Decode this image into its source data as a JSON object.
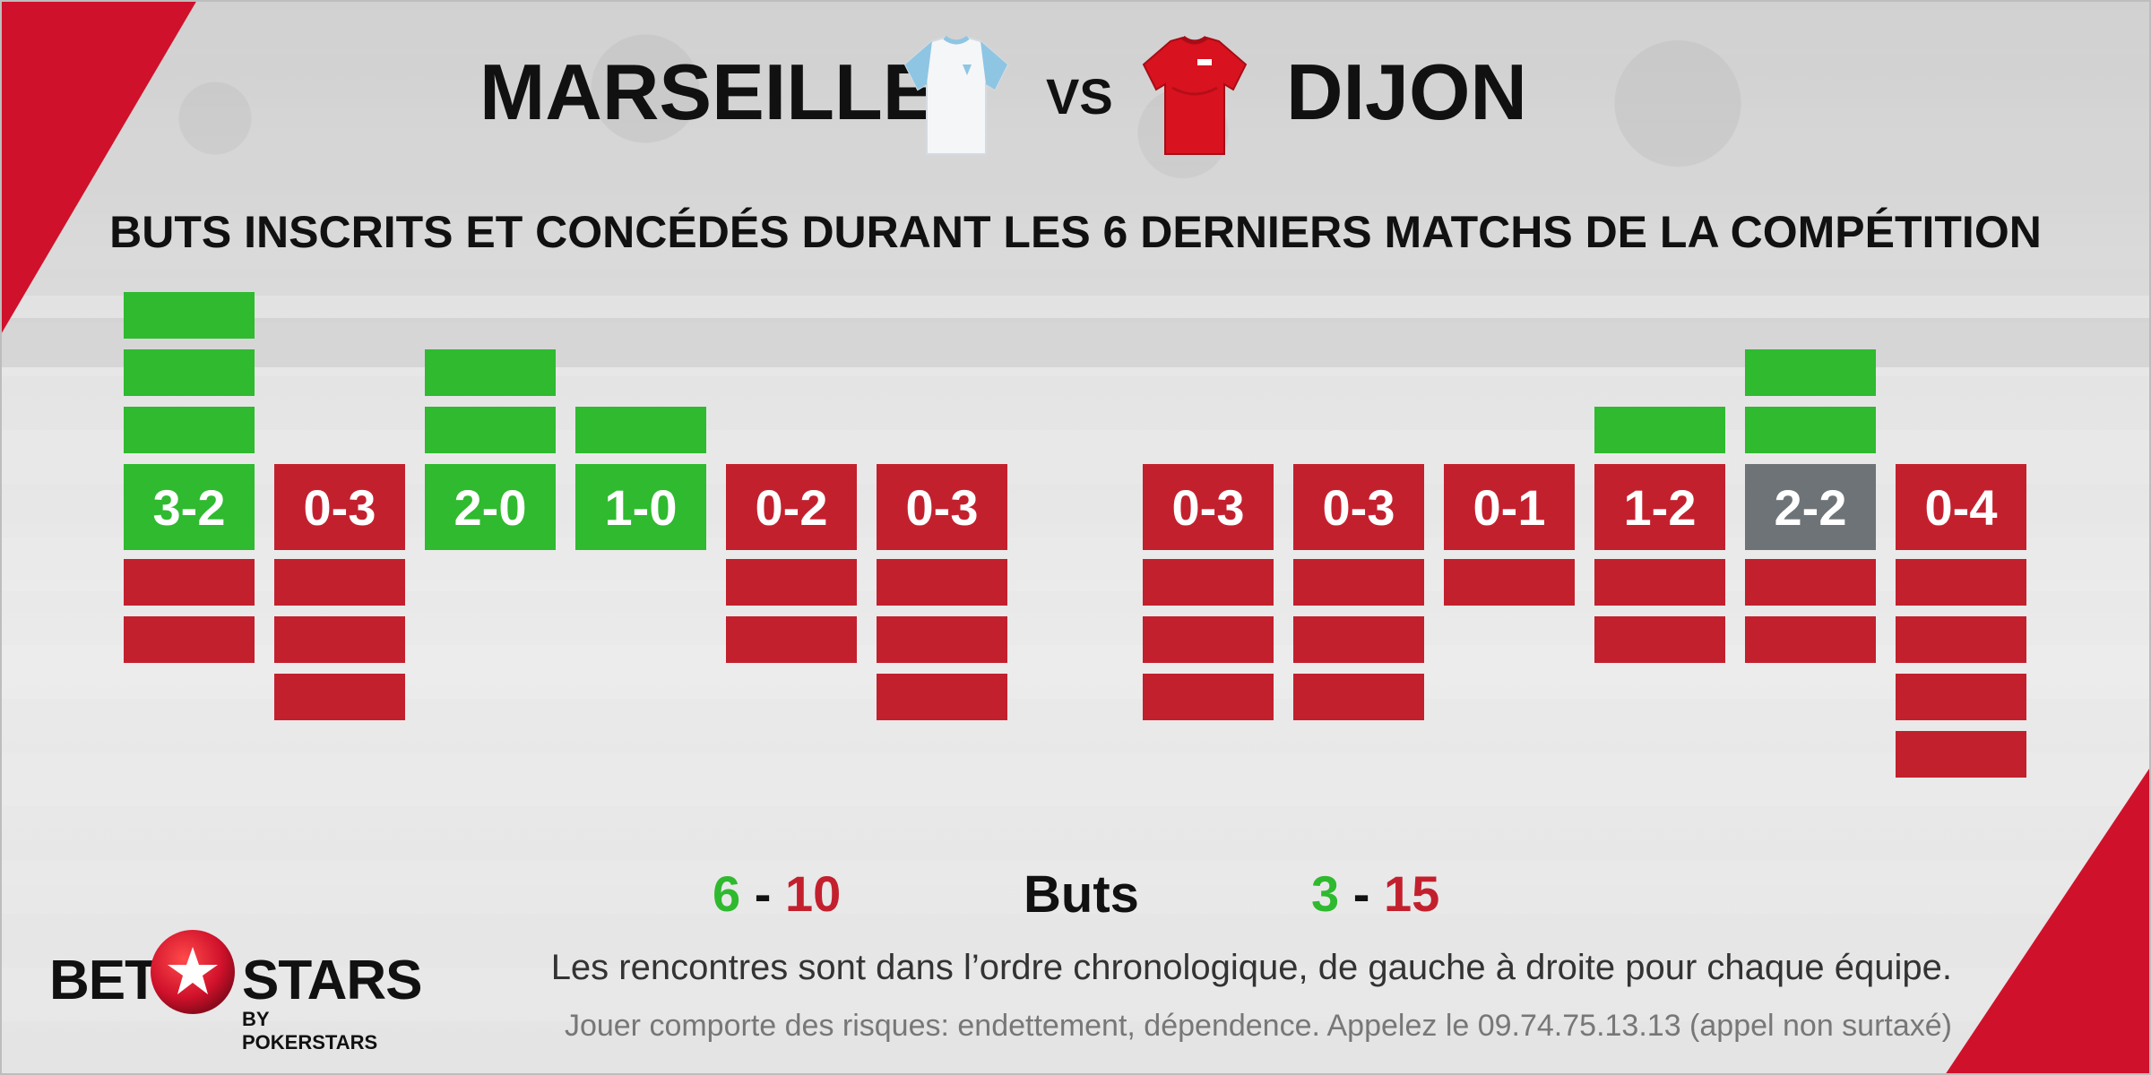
{
  "header": {
    "team_left": "MARSEILLE",
    "vs": "VS",
    "team_right": "DIJON",
    "subtitle": "BUTS INSCRITS ET CONCÉDÉS DURANT LES 6 DERNIERS MATCHS DE LA COMPÉTITION"
  },
  "colors": {
    "win": "#2fba2f",
    "loss": "#c3202e",
    "draw": "#6e7378",
    "accent_red": "#d0112b"
  },
  "chart_data": {
    "type": "bar",
    "title": "BUTS INSCRITS ET CONCÉDÉS DURANT LES 6 DERNIERS MATCHS DE LA COMPÉTITION",
    "groups": [
      {
        "team": "MARSEILLE",
        "matches": [
          {
            "score": "3-2",
            "scored": 3,
            "conceded": 2,
            "result": "win"
          },
          {
            "score": "0-3",
            "scored": 0,
            "conceded": 3,
            "result": "loss"
          },
          {
            "score": "2-0",
            "scored": 2,
            "conceded": 0,
            "result": "win"
          },
          {
            "score": "1-0",
            "scored": 1,
            "conceded": 0,
            "result": "win"
          },
          {
            "score": "0-2",
            "scored": 0,
            "conceded": 2,
            "result": "loss"
          },
          {
            "score": "0-3",
            "scored": 0,
            "conceded": 3,
            "result": "loss"
          }
        ]
      },
      {
        "team": "DIJON",
        "matches": [
          {
            "score": "0-3",
            "scored": 0,
            "conceded": 3,
            "result": "loss"
          },
          {
            "score": "0-3",
            "scored": 0,
            "conceded": 3,
            "result": "loss"
          },
          {
            "score": "0-1",
            "scored": 0,
            "conceded": 1,
            "result": "loss"
          },
          {
            "score": "1-2",
            "scored": 1,
            "conceded": 2,
            "result": "loss"
          },
          {
            "score": "2-2",
            "scored": 2,
            "conceded": 2,
            "result": "draw"
          },
          {
            "score": "0-4",
            "scored": 0,
            "conceded": 4,
            "result": "loss"
          }
        ]
      }
    ]
  },
  "totals": {
    "left_scored": "6",
    "left_conceded": "10",
    "right_scored": "3",
    "right_conceded": "15",
    "dash": "-",
    "label": "Buts"
  },
  "footer": {
    "note": "Les rencontres sont dans l’ordre chronologique, de gauche à droite pour chaque équipe.",
    "disclaimer": "Jouer comporte des risques: endettement, dépendence. Appelez le 09.74.75.13.13 (appel non surtaxé)"
  },
  "logo": {
    "bet": "BET",
    "stars": "STARS",
    "by": "BY POKERSTARS"
  }
}
